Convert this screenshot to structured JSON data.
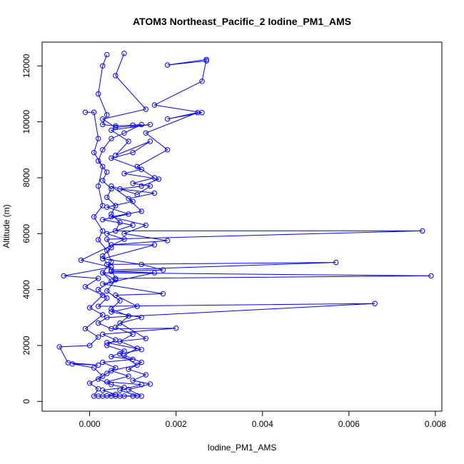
{
  "chart_data": {
    "type": "scatter",
    "title": "ATOM3 Northeast_Pacific_2 Iodine_PM1_AMS",
    "xlabel": "Iodine_PM1_AMS",
    "ylabel": "Altitude (m)",
    "xlim": [
      -0.0011,
      0.00815
    ],
    "ylim": [
      -350,
      12850
    ],
    "x_ticks": [
      0.0,
      0.002,
      0.004,
      0.006,
      0.008
    ],
    "x_tick_labels": [
      "0.000",
      "0.002",
      "0.004",
      "0.006",
      "0.008"
    ],
    "y_ticks": [
      0,
      2000,
      4000,
      6000,
      8000,
      10000,
      12000
    ],
    "y_tick_labels": [
      "0",
      "2000",
      "4000",
      "6000",
      "8000",
      "10000",
      "12000"
    ],
    "grid": false,
    "legend": false,
    "color": "#0000ff",
    "series": [
      {
        "values": [
          [
            0.0004,
            12400
          ],
          [
            0.0003,
            12000
          ],
          [
            0.0002,
            11000
          ],
          [
            0.0004,
            10250
          ],
          [
            0.0003,
            9900
          ],
          [
            0.0006,
            9850
          ],
          [
            0.001,
            9880
          ],
          [
            0.0012,
            9900
          ],
          [
            0.0008,
            9600
          ],
          [
            0.0005,
            9400
          ],
          [
            0.0003,
            9000
          ],
          [
            0.0002,
            8600
          ],
          [
            0.0004,
            8200
          ],
          [
            0.0003,
            7900
          ],
          [
            0.0005,
            7600
          ],
          [
            0.0004,
            7300
          ],
          [
            0.0006,
            7000
          ],
          [
            0.0005,
            6700
          ],
          [
            0.0007,
            6400
          ],
          [
            0.0006,
            6100
          ],
          [
            0.0077,
            6100
          ],
          [
            0.0004,
            5800
          ],
          [
            0.0005,
            5500
          ],
          [
            0.0003,
            5200
          ],
          [
            0.0004,
            4900
          ],
          [
            0.0057,
            4970
          ],
          [
            0.0005,
            4700
          ],
          [
            0.0006,
            4400
          ],
          [
            0.0079,
            4490
          ],
          [
            0.0003,
            4600
          ],
          [
            0.0005,
            4300
          ],
          [
            0.0002,
            4000
          ],
          [
            0.0004,
            3700
          ],
          [
            0.0002,
            3400
          ],
          [
            0.0066,
            3500
          ],
          [
            0.0004,
            3000
          ],
          [
            0.0002,
            2800
          ],
          [
            0.0005,
            2600
          ],
          [
            0.002,
            2620
          ],
          [
            0.0003,
            2400
          ],
          [
            0.0006,
            2200
          ],
          [
            0.0004,
            2000
          ],
          [
            0.0008,
            1800
          ],
          [
            0.0005,
            1600
          ],
          [
            0.001,
            1500
          ],
          [
            0.0003,
            1400
          ],
          [
            0.0006,
            1200
          ],
          [
            0.0004,
            1000
          ],
          [
            0.0002,
            800
          ],
          [
            0.0005,
            600
          ],
          [
            0.0008,
            500
          ],
          [
            0.0003,
            400
          ],
          [
            0.0006,
            250
          ],
          [
            0.0004,
            200
          ],
          [
            0.0002,
            190
          ],
          [
            0.0008,
            190
          ]
        ]
      },
      {
        "values": [
          [
            0.0008,
            12450
          ],
          [
            0.0006,
            11650
          ],
          [
            0.0013,
            10450
          ],
          [
            0.0003,
            10100
          ],
          [
            0.0006,
            9800
          ],
          [
            0.0014,
            9900
          ],
          [
            0.0005,
            9700
          ],
          [
            0.0009,
            9300
          ],
          [
            0.0006,
            8800
          ],
          [
            0.0014,
            9300
          ],
          [
            0.001,
            8900
          ],
          [
            0.0005,
            8700
          ],
          [
            0.0012,
            8300
          ],
          [
            0.0008,
            8150
          ],
          [
            0.0016,
            7950
          ],
          [
            0.0012,
            7700
          ],
          [
            0.0007,
            7600
          ],
          [
            0.0015,
            7450
          ],
          [
            0.0009,
            7250
          ],
          [
            0.0012,
            6800
          ],
          [
            0.0005,
            6600
          ],
          [
            0.0013,
            6300
          ],
          [
            0.0008,
            6000
          ],
          [
            0.0018,
            5750
          ],
          [
            0.0005,
            5600
          ],
          [
            0.0015,
            5600
          ],
          [
            0.0003,
            5100
          ],
          [
            0.0012,
            4900
          ],
          [
            0.0017,
            4700
          ],
          [
            0.0005,
            4650
          ],
          [
            0.0015,
            4600
          ],
          [
            0.0003,
            4200
          ],
          [
            0.0017,
            3850
          ],
          [
            0.0006,
            3800
          ],
          [
            0.0011,
            3400
          ],
          [
            0.0005,
            3200
          ],
          [
            0.0012,
            3000
          ],
          [
            0.0007,
            2800
          ],
          [
            0.0013,
            2250
          ],
          [
            0.0004,
            2100
          ],
          [
            0.0012,
            1850
          ],
          [
            0.0007,
            1700
          ],
          [
            0.0011,
            1300
          ],
          [
            0.0005,
            1100
          ],
          [
            0.0009,
            900
          ],
          [
            0.0004,
            700
          ],
          [
            0.0012,
            600
          ],
          [
            0.0007,
            400
          ],
          [
            0.0011,
            200
          ],
          [
            0.0005,
            190
          ]
        ]
      },
      {
        "values": [
          [
            0.0027,
            12180
          ],
          [
            0.0018,
            12030
          ],
          [
            0.0027,
            12230
          ],
          [
            0.0026,
            11450
          ],
          [
            0.0015,
            10600
          ],
          [
            0.0026,
            10330
          ],
          [
            0.0018,
            10100
          ],
          [
            0.0025,
            10330
          ],
          [
            0.0013,
            9600
          ],
          [
            0.0018,
            9000
          ],
          [
            0.0011,
            8400
          ],
          [
            0.0015,
            8000
          ],
          [
            0.001,
            7800
          ],
          [
            0.0014,
            7700
          ],
          [
            0.0011,
            7400
          ],
          [
            0.0005,
            7700
          ],
          [
            0.001,
            7150
          ],
          [
            0.0004,
            6950
          ],
          [
            0.0009,
            6700
          ],
          [
            0.0003,
            6500
          ],
          [
            0.001,
            6300
          ],
          [
            0.0004,
            6000
          ],
          [
            0.0008,
            5800
          ],
          [
            -0.0002,
            5050
          ],
          [
            0.0005,
            4800
          ],
          [
            -0.0006,
            4490
          ],
          [
            0.0002,
            4400
          ],
          [
            -0.0001,
            4100
          ],
          [
            0.0003,
            3800
          ],
          [
            0.0,
            3350
          ],
          [
            0.0003,
            3100
          ],
          [
            -0.0001,
            2600
          ],
          [
            0.0002,
            2300
          ],
          [
            0.0,
            2000
          ],
          [
            -0.0007,
            1950
          ],
          [
            -0.0005,
            1380
          ],
          [
            0.0002,
            1300
          ],
          [
            -0.0004,
            1340
          ],
          [
            0.0001,
            1200
          ],
          [
            0.0003,
            900
          ],
          [
            0.0,
            650
          ],
          [
            0.0002,
            450
          ],
          [
            0.0001,
            190
          ],
          [
            0.0003,
            190
          ]
        ]
      },
      {
        "values": [
          [
            -0.0001,
            10340
          ],
          [
            0.0001,
            10340
          ],
          [
            0.0002,
            9400
          ],
          [
            0.0001,
            8900
          ],
          [
            0.0003,
            8400
          ],
          [
            0.0002,
            7700
          ],
          [
            0.0003,
            7000
          ],
          [
            0.0001,
            6600
          ],
          [
            0.0003,
            6100
          ],
          [
            0.0002,
            5780
          ],
          [
            0.0004,
            5400
          ],
          [
            0.0005,
            5000
          ],
          [
            0.0003,
            4600
          ],
          [
            0.0006,
            4350
          ],
          [
            0.0004,
            3950
          ],
          [
            0.0007,
            3600
          ],
          [
            0.0005,
            3300
          ],
          [
            0.0009,
            3050
          ],
          [
            0.0006,
            2650
          ],
          [
            0.001,
            2400
          ],
          [
            0.0007,
            2150
          ],
          [
            0.0011,
            1900
          ],
          [
            0.0008,
            1650
          ],
          [
            0.0012,
            1400
          ],
          [
            0.0009,
            1150
          ],
          [
            0.0013,
            950
          ],
          [
            0.001,
            750
          ],
          [
            0.0014,
            620
          ],
          [
            0.0009,
            420
          ],
          [
            0.0012,
            190
          ],
          [
            0.001,
            190
          ],
          [
            0.0007,
            190
          ],
          [
            0.0006,
            190
          ]
        ]
      }
    ]
  }
}
